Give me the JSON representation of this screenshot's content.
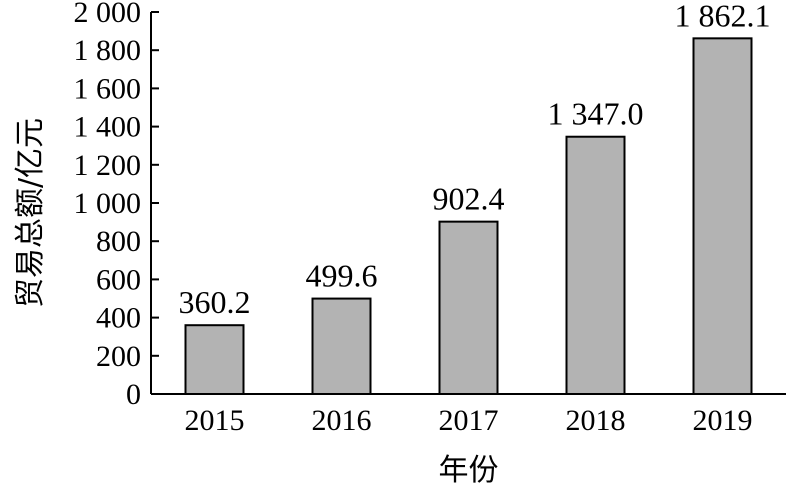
{
  "chart_data": {
    "type": "bar",
    "categories": [
      "2015",
      "2016",
      "2017",
      "2018",
      "2019"
    ],
    "values": [
      360.2,
      499.6,
      902.4,
      1347.0,
      1862.1
    ],
    "value_labels": [
      "360.2",
      "499.6",
      "902.4",
      "1 347.0",
      "1 862.1"
    ],
    "xlabel": "年份",
    "ylabel": "贸易总额/亿元",
    "ylim": [
      0,
      2000
    ],
    "yticks": [
      0,
      200,
      400,
      600,
      800,
      1000,
      1200,
      1400,
      1600,
      1800,
      2000
    ],
    "ytick_labels": [
      "0",
      "200",
      "400",
      "600",
      "800",
      "1 000",
      "1 200",
      "1 400",
      "1 600",
      "1 800",
      "2 000"
    ],
    "grid": false,
    "legend": "none",
    "colors": {
      "bar_fill": "#b3b3b3",
      "bar_stroke": "#000000",
      "axis": "#000000"
    }
  }
}
